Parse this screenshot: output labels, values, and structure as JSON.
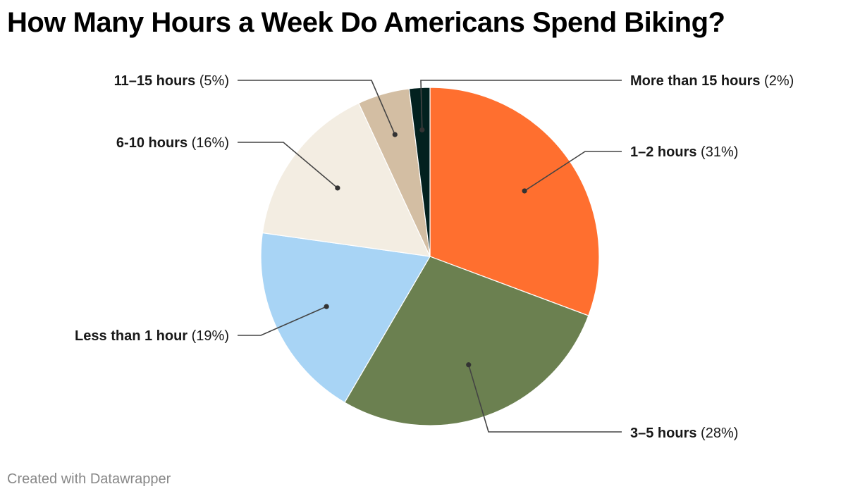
{
  "title": "How Many Hours a Week Do Americans Spend Biking?",
  "footer": "Created with Datawrapper",
  "chart_data": {
    "type": "pie",
    "title": "How Many Hours a Week Do Americans Spend Biking?",
    "categories": [
      "1–2 hours",
      "3–5 hours",
      "Less than 1 hour",
      "6-10 hours",
      "11–15 hours",
      "More than 15 hours"
    ],
    "values": [
      31,
      28,
      19,
      16,
      5,
      2
    ],
    "unit": "%",
    "colors": [
      "#ff6f2f",
      "#6b8050",
      "#a8d4f5",
      "#f3ede2",
      "#d3bea3",
      "#02211f"
    ],
    "start_angle": "12 o'clock, clockwise",
    "legend": "none (direct labels with leader lines)"
  },
  "slices": [
    {
      "label": "1–2 hours",
      "pct": "(31%)",
      "value": 31,
      "color": "#ff6f2f"
    },
    {
      "label": "3–5 hours",
      "pct": "(28%)",
      "value": 28,
      "color": "#6b8050"
    },
    {
      "label": "Less than 1 hour",
      "pct": "(19%)",
      "value": 19,
      "color": "#a8d4f5"
    },
    {
      "label": "6-10 hours",
      "pct": "(16%)",
      "value": 16,
      "color": "#f3ede2"
    },
    {
      "label": "11–15 hours",
      "pct": "(5%)",
      "value": 5,
      "color": "#d3bea3"
    },
    {
      "label": "More than 15 hours",
      "pct": "(2%)",
      "value": 2,
      "color": "#02211f"
    }
  ]
}
